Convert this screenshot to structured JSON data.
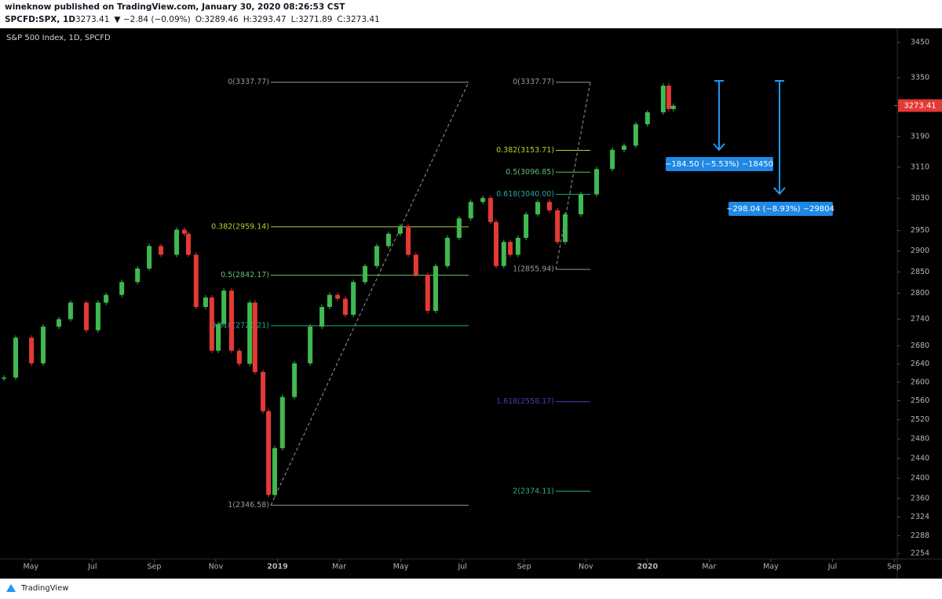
{
  "header": {
    "publisher": "wineknow published on TradingView.com, January 30, 2020 08:26:53 CST",
    "symbol": "SPCFD:SPX, 1D",
    "quote": [
      "3273.41",
      "▼ −2.84 (−0.09%)",
      "O:3289.46",
      "H:3293.47",
      "L:3271.89",
      "C:3273.41"
    ]
  },
  "chart_data": {
    "type": "candlestick",
    "title": "S&P 500 Index, 1D, SPCFD",
    "up_color": "#3fb950",
    "down_color": "#e53935",
    "log_scale": true,
    "x": [
      -0.87,
      -0.49,
      0.02,
      0.4,
      0.91,
      1.29,
      1.8,
      2.18,
      2.44,
      2.95,
      3.46,
      3.84,
      4.22,
      4.73,
      4.98,
      5.11,
      5.36,
      5.67,
      5.87,
      6.08,
      6.26,
      6.51,
      6.76,
      7.1,
      7.27,
      7.53,
      7.71,
      7.91,
      8.16,
      8.55,
      9.06,
      9.44,
      9.69,
      9.95,
      10.2,
      10.46,
      10.84,
      11.22,
      11.6,
      11.98,
      12.24,
      12.49,
      12.87,
      13.13,
      13.51,
      13.89,
      14.27,
      14.66,
      14.91,
      15.09,
      15.34,
      15.55,
      15.8,
      16.06,
      16.44,
      16.82,
      17.08,
      17.33,
      17.84,
      18.35,
      18.86,
      19.24,
      19.62,
      20.0,
      20.51,
      20.69,
      20.84
    ],
    "values": [
      2610,
      2698,
      2641,
      2723,
      2740,
      2778,
      2715,
      2778,
      2796,
      2826,
      2858,
      2912,
      2891,
      2952,
      2942,
      2891,
      2768,
      2790,
      2669,
      2729,
      2806,
      2669,
      2640,
      2778,
      2622,
      2538,
      2367,
      2461,
      2568,
      2641,
      2723,
      2768,
      2796,
      2787,
      2750,
      2826,
      2864,
      2912,
      2942,
      2960,
      2891,
      2843,
      2759,
      2864,
      2932,
      2980,
      3021,
      3031,
      2971,
      2864,
      2922,
      2891,
      2932,
      2990,
      3021,
      3000,
      2922,
      2990,
      3040,
      3105,
      3155,
      3166,
      3223,
      3255,
      3328,
      3264,
      3273
    ],
    "xlim": [
      -1,
      28.1
    ],
    "xticks": [
      {
        "value": 0,
        "label": "May"
      },
      {
        "value": 2,
        "label": "Jul"
      },
      {
        "value": 4,
        "label": "Sep"
      },
      {
        "value": 6,
        "label": "Nov"
      },
      {
        "value": 8,
        "label": "2019"
      },
      {
        "value": 10,
        "label": "Mar"
      },
      {
        "value": 12,
        "label": "May"
      },
      {
        "value": 14,
        "label": "Jul"
      },
      {
        "value": 16,
        "label": "Sep"
      },
      {
        "value": 18,
        "label": "Nov"
      },
      {
        "value": 20,
        "label": "2020"
      },
      {
        "value": 22,
        "label": "Mar"
      },
      {
        "value": 24,
        "label": "May"
      },
      {
        "value": 26,
        "label": "Jul"
      },
      {
        "value": 28,
        "label": "Sep"
      }
    ],
    "ylim": [
      2244,
      3482
    ],
    "yticks": [
      3450,
      3350,
      3190,
      3110,
      3030,
      2950,
      2900,
      2850,
      2800,
      2740,
      2680,
      2640,
      2600,
      2560,
      2520,
      2480,
      2440,
      2400,
      2360,
      2324,
      2288,
      2254
    ],
    "last_price": 3273.41,
    "fib_left": [
      {
        "label": "0(3337.77)",
        "value": 3337.77,
        "color": "#9598a1"
      },
      {
        "label": "0.382(2959.14)",
        "value": 2959.14,
        "color": "#c0ca33"
      },
      {
        "label": "0.5(2842.17)",
        "value": 2842.17,
        "color": "#66bb6a"
      },
      {
        "label": "0.618(2725.21)",
        "value": 2725.21,
        "color": "#26a69a"
      },
      {
        "label": "1(2346.58)",
        "value": 2346.58,
        "color": "#9598a1"
      }
    ],
    "fib_right": [
      {
        "label": "0(3337.77)",
        "value": 3337.77,
        "color": "#9598a1"
      },
      {
        "label": "0.382(3153.71)",
        "value": 3153.71,
        "color": "#c0ca33"
      },
      {
        "label": "0.5(3096.85)",
        "value": 3096.85,
        "color": "#66bb6a"
      },
      {
        "label": "0.618(3040.00)",
        "value": 3040.0,
        "color": "#26a69a"
      },
      {
        "label": "1(2855.94)",
        "value": 2855.94,
        "color": "#9598a1"
      },
      {
        "label": "1.618(2558.17)",
        "value": 2558.17,
        "color": "#3f3fbf"
      },
      {
        "label": "2(2374.11)",
        "value": 2374.11,
        "color": "#2fb37a"
      }
    ],
    "measures": [
      "−184.50 (−5.53%) −18450",
      "−298.04 (−8.93%) −29804"
    ]
  },
  "footer": {
    "brand": "TradingView"
  }
}
